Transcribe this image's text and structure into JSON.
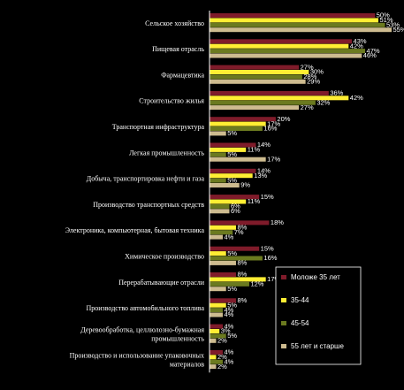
{
  "chart_data": {
    "type": "bar",
    "orientation": "horizontal",
    "categories": [
      "Сельское хозяйство",
      "Пищевая отрасль",
      "Фармацевтика",
      "Строительство жилья",
      "Транспортная инфраструктура",
      "Легкая промышленность",
      "Добыча, транспортировка нефти и газа",
      "Производство транспортных средств",
      "Электроника, компьютерная, бытовая техника",
      "Химическое производство",
      "Перерабатывающие отрасли",
      "Производство автомобильного топлива",
      "Деревообработка, целлюлозно-бумажная промышленность",
      "Производство и использование упаковочных материалов"
    ],
    "series": [
      {
        "name": "Моложе 35 лет",
        "color": "#7f1b2a",
        "values": [
          50,
          43,
          27,
          36,
          20,
          14,
          14,
          15,
          18,
          15,
          8,
          8,
          4,
          4
        ]
      },
      {
        "name": "35-44",
        "color": "#ffee33",
        "values": [
          51,
          42,
          30,
          42,
          17,
          11,
          13,
          11,
          8,
          5,
          17,
          5,
          3,
          2
        ]
      },
      {
        "name": "45-54",
        "color": "#6b7a1f",
        "values": [
          53,
          47,
          28,
          32,
          16,
          5,
          5,
          6,
          7,
          16,
          12,
          4,
          5,
          4
        ]
      },
      {
        "name": "55 лет и старше",
        "color": "#cdbb8f",
        "values": [
          55,
          46,
          29,
          27,
          5,
          17,
          9,
          6,
          4,
          8,
          5,
          4,
          2,
          2
        ]
      }
    ],
    "value_labels": [
      [
        "50%",
        "51%",
        "53%",
        "55%"
      ],
      [
        "43%",
        "42%",
        "47%",
        "46%"
      ],
      [
        "27%",
        "30%",
        "28%",
        "29%"
      ],
      [
        "36%",
        "42%",
        "32%",
        "27%"
      ],
      [
        "20%",
        "17%",
        "16%",
        "5%"
      ],
      [
        "14%",
        "11%",
        "5%",
        "17%"
      ],
      [
        "14%",
        "13%",
        "5%",
        "9%"
      ],
      [
        "15%",
        "11%",
        "6%",
        "6%"
      ],
      [
        "18%",
        "8%",
        "7%",
        "4%"
      ],
      [
        "15%",
        "5%",
        "16%",
        "8%"
      ],
      [
        "8%",
        "17%",
        "12%",
        "5%"
      ],
      [
        "8%",
        "5%",
        "4%",
        "4%"
      ],
      [
        "4%",
        "3%",
        "5%",
        "2%"
      ],
      [
        "4%",
        "2%",
        "4%",
        "2%"
      ]
    ],
    "xlim": [
      0,
      55
    ],
    "grid": false,
    "legend_position": "bottom-right"
  }
}
